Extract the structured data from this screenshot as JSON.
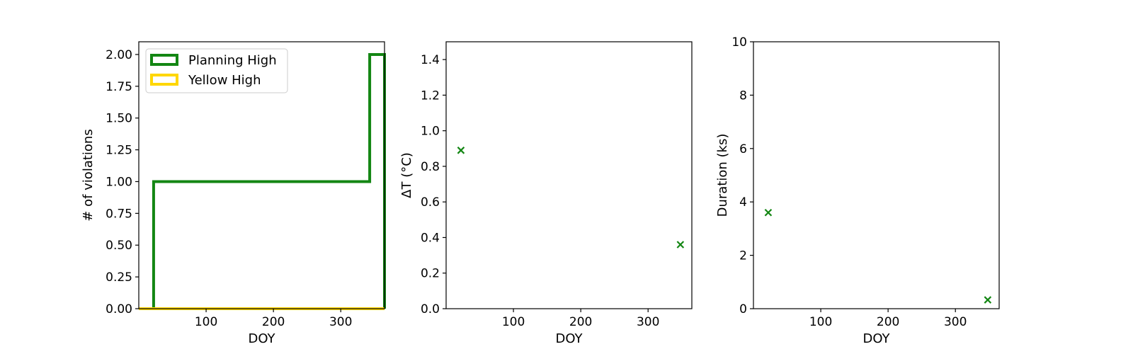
{
  "colors": {
    "planning": "#138613",
    "yellow": "#ffd700",
    "axes": "#000000",
    "legend_border": "#cccccc"
  },
  "chart_data": [
    {
      "type": "line",
      "step": true,
      "xlabel": "DOY",
      "ylabel": "# of violations",
      "xlim": [
        0,
        365
      ],
      "ylim": [
        0,
        2.1
      ],
      "xticks": [
        100,
        200,
        300
      ],
      "yticks": [
        0,
        0.25,
        0.5,
        0.75,
        1.0,
        1.25,
        1.5,
        1.75,
        2.0
      ],
      "ytick_labels": [
        "0.00",
        "0.25",
        "0.50",
        "0.75",
        "1.00",
        "1.25",
        "1.50",
        "1.75",
        "2.00"
      ],
      "legend_position": "top-left",
      "series": [
        {
          "name": "Planning High",
          "color": "#138613",
          "x": [
            0,
            22,
            22,
            343,
            343,
            365,
            365
          ],
          "y": [
            0,
            0,
            1,
            1,
            2,
            2,
            0
          ]
        },
        {
          "name": "Yellow High",
          "color": "#ffd700",
          "x": [
            0,
            365
          ],
          "y": [
            0,
            0
          ]
        }
      ]
    },
    {
      "type": "scatter",
      "xlabel": "DOY",
      "ylabel": "ΔT (°C)",
      "xlim": [
        0,
        365
      ],
      "ylim": [
        0,
        1.5
      ],
      "xticks": [
        100,
        200,
        300
      ],
      "yticks": [
        0,
        0.2,
        0.4,
        0.6,
        0.8,
        1.0,
        1.2,
        1.4
      ],
      "ytick_labels": [
        "0.0",
        "0.2",
        "0.4",
        "0.6",
        "0.8",
        "1.0",
        "1.2",
        "1.4"
      ],
      "marker": "x",
      "color": "#138613",
      "points": [
        {
          "x": 22,
          "y": 0.89
        },
        {
          "x": 348,
          "y": 0.36
        }
      ]
    },
    {
      "type": "scatter",
      "xlabel": "DOY",
      "ylabel": "Duration (ks)",
      "xlim": [
        0,
        365
      ],
      "ylim": [
        0,
        10
      ],
      "xticks": [
        100,
        200,
        300
      ],
      "yticks": [
        0,
        2,
        4,
        6,
        8,
        10
      ],
      "ytick_labels": [
        "0",
        "2",
        "4",
        "6",
        "8",
        "10"
      ],
      "marker": "x",
      "color": "#138613",
      "points": [
        {
          "x": 22,
          "y": 3.6
        },
        {
          "x": 348,
          "y": 0.33
        }
      ]
    }
  ]
}
